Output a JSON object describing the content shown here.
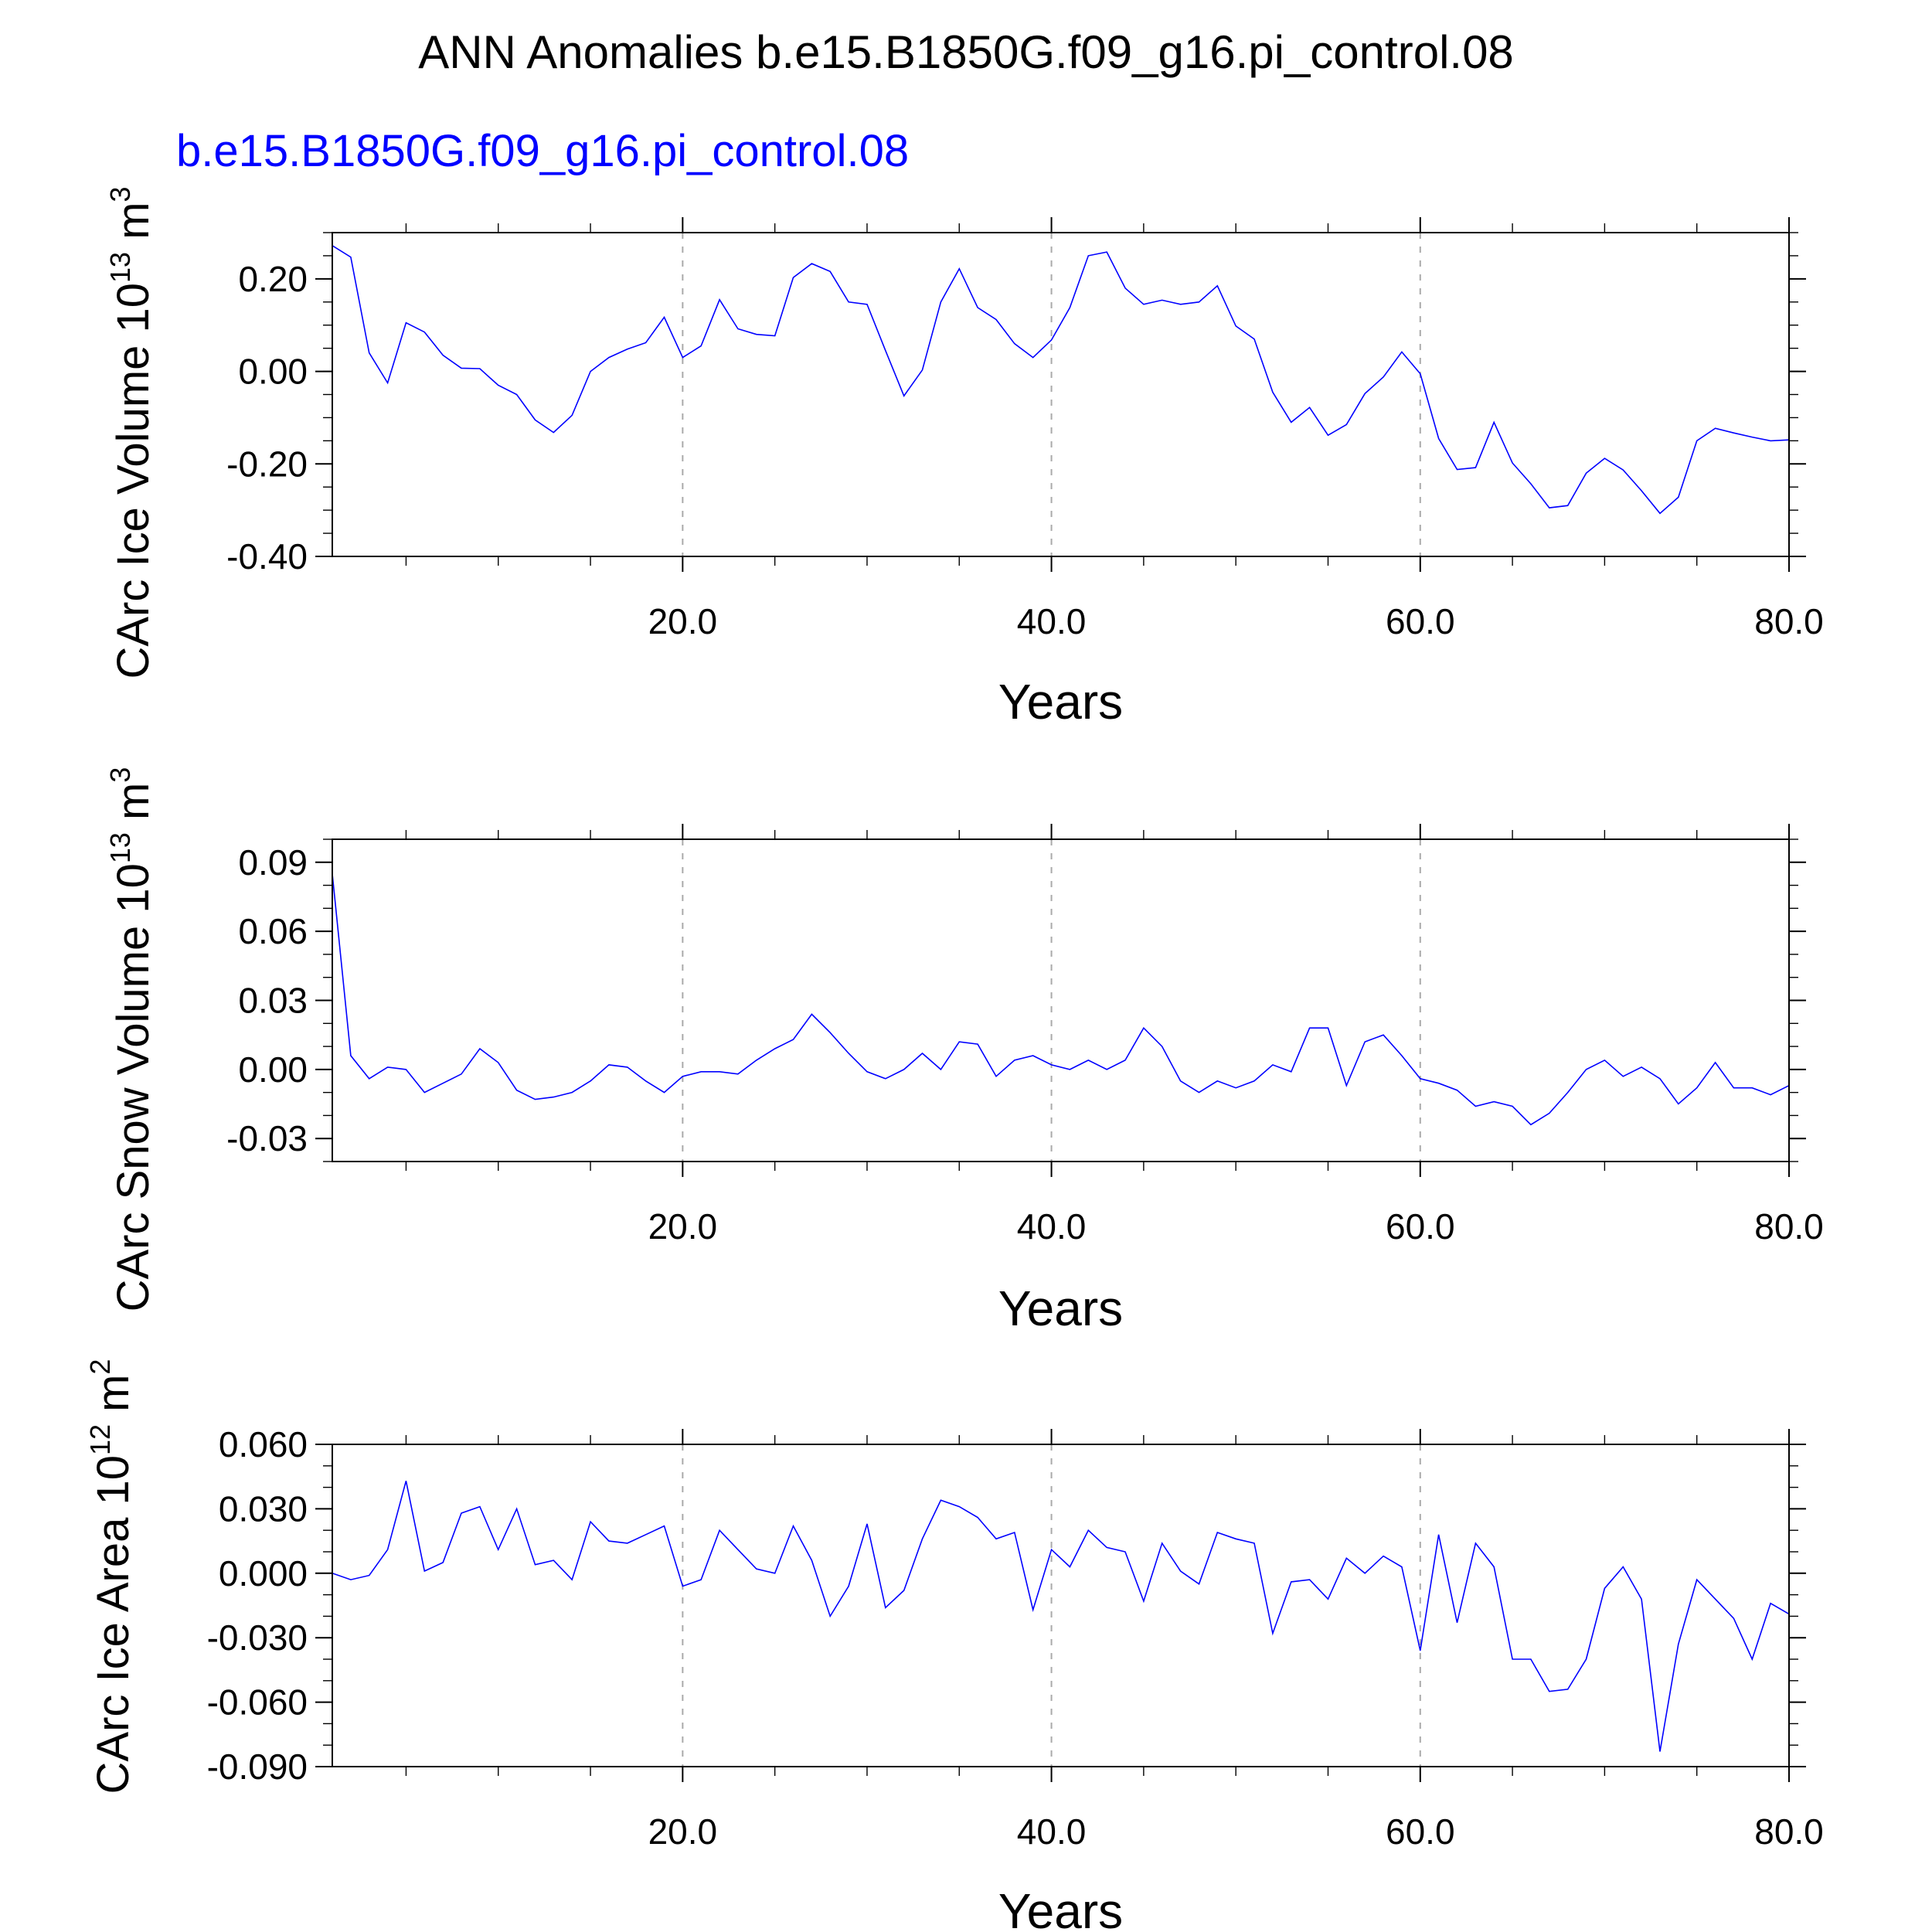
{
  "title": "ANN Anomalies b.e15.B1850G.f09_g16.pi_control.08",
  "subtitle": "b.e15.B1850G.f09_g16.pi_control.08",
  "series_color": "#0000ff",
  "chart_data": [
    {
      "type": "line",
      "ylabel": "CArc Ice Volume 10",
      "ylabel_sup": "13",
      "ylabel_unit": "m",
      "ylabel_unit_sup": "3",
      "xlabel": "Years",
      "xlim": [
        1,
        80
      ],
      "ylim": [
        -0.4,
        0.3
      ],
      "xticks": [
        "20.0",
        "40.0",
        "60.0",
        "80.0"
      ],
      "yticks": [
        "0.20",
        "0.00",
        "-0.20",
        "-0.40"
      ],
      "x": [
        1,
        2,
        3,
        4,
        5,
        6,
        7,
        8,
        9,
        10,
        11,
        12,
        13,
        14,
        15,
        16,
        17,
        18,
        19,
        20,
        21,
        22,
        23,
        24,
        25,
        26,
        27,
        28,
        29,
        30,
        31,
        32,
        33,
        34,
        35,
        36,
        37,
        38,
        39,
        40,
        41,
        42,
        43,
        44,
        45,
        46,
        47,
        48,
        49,
        50,
        51,
        52,
        53,
        54,
        55,
        56,
        57,
        58,
        59,
        60,
        61,
        62,
        63,
        64,
        65,
        66,
        67,
        68,
        69,
        70,
        71,
        72,
        73,
        74,
        75,
        76,
        77,
        78,
        79,
        80
      ],
      "values": [
        0.272,
        0.247,
        0.04,
        -0.025,
        0.105,
        0.085,
        0.035,
        0.007,
        0.006,
        -0.03,
        -0.05,
        -0.105,
        -0.132,
        -0.095,
        0.0,
        0.03,
        0.048,
        0.062,
        0.117,
        0.03,
        0.055,
        0.155,
        0.092,
        0.08,
        0.077,
        0.203,
        0.233,
        0.216,
        0.15,
        0.145,
        0.045,
        -0.053,
        0.003,
        0.15,
        0.222,
        0.138,
        0.112,
        0.06,
        0.03,
        0.068,
        0.138,
        0.25,
        0.258,
        0.18,
        0.145,
        0.154,
        0.145,
        0.15,
        0.185,
        0.098,
        0.07,
        -0.045,
        -0.11,
        -0.078,
        -0.138,
        -0.115,
        -0.048,
        -0.012,
        0.042,
        -0.005,
        -0.145,
        -0.212,
        -0.208,
        -0.11,
        -0.198,
        -0.243,
        -0.295,
        -0.29,
        -0.22,
        -0.188,
        -0.213,
        -0.258,
        -0.307,
        -0.272,
        -0.15,
        -0.123,
        -0.133,
        -0.142,
        -0.15,
        -0.148
      ]
    },
    {
      "type": "line",
      "ylabel": "CArc Snow Volume 10",
      "ylabel_sup": "13",
      "ylabel_unit": "m",
      "ylabel_unit_sup": "3",
      "xlabel": "Years",
      "xlim": [
        1,
        80
      ],
      "ylim": [
        -0.04,
        0.1
      ],
      "xticks": [
        "20.0",
        "40.0",
        "60.0",
        "80.0"
      ],
      "yticks": [
        "0.09",
        "0.06",
        "0.03",
        "0.00",
        "-0.03"
      ],
      "x": [
        1,
        2,
        3,
        4,
        5,
        6,
        7,
        8,
        9,
        10,
        11,
        12,
        13,
        14,
        15,
        16,
        17,
        18,
        19,
        20,
        21,
        22,
        23,
        24,
        25,
        26,
        27,
        28,
        29,
        30,
        31,
        32,
        33,
        34,
        35,
        36,
        37,
        38,
        39,
        40,
        41,
        42,
        43,
        44,
        45,
        46,
        47,
        48,
        49,
        50,
        51,
        52,
        53,
        54,
        55,
        56,
        57,
        58,
        59,
        60,
        61,
        62,
        63,
        64,
        65,
        66,
        67,
        68,
        69,
        70,
        71,
        72,
        73,
        74,
        75,
        76,
        77,
        78,
        79,
        80
      ],
      "values": [
        0.085,
        0.006,
        -0.004,
        0.001,
        0.0,
        -0.01,
        -0.006,
        -0.002,
        0.009,
        0.003,
        -0.009,
        -0.013,
        -0.012,
        -0.01,
        -0.005,
        0.002,
        0.001,
        -0.005,
        -0.01,
        -0.003,
        -0.001,
        -0.001,
        -0.002,
        0.004,
        0.009,
        0.013,
        0.024,
        0.016,
        0.007,
        -0.001,
        -0.004,
        0.0,
        0.007,
        0.0,
        0.012,
        0.011,
        -0.003,
        0.004,
        0.006,
        0.002,
        0.0,
        0.004,
        0.0,
        0.004,
        0.018,
        0.01,
        -0.005,
        -0.01,
        -0.005,
        -0.008,
        -0.005,
        0.002,
        -0.001,
        0.018,
        0.018,
        -0.007,
        0.012,
        0.015,
        0.006,
        -0.004,
        -0.006,
        -0.009,
        -0.016,
        -0.014,
        -0.016,
        -0.024,
        -0.019,
        -0.01,
        0.0,
        0.004,
        -0.003,
        0.001,
        -0.004,
        -0.015,
        -0.008,
        0.003,
        -0.008,
        -0.008,
        -0.011,
        -0.007
      ]
    },
    {
      "type": "line",
      "ylabel": "CArc Ice Area 10",
      "ylabel_sup": "12",
      "ylabel_unit": "m",
      "ylabel_unit_sup": "2",
      "xlabel": "Years",
      "xlim": [
        1,
        80
      ],
      "ylim": [
        -0.09,
        0.06
      ],
      "xticks": [
        "20.0",
        "40.0",
        "60.0",
        "80.0"
      ],
      "yticks": [
        "0.060",
        "0.030",
        "0.000",
        "-0.030",
        "-0.060",
        "-0.090"
      ],
      "x": [
        1,
        2,
        3,
        4,
        5,
        6,
        7,
        8,
        9,
        10,
        11,
        12,
        13,
        14,
        15,
        16,
        17,
        18,
        19,
        20,
        21,
        22,
        23,
        24,
        25,
        26,
        27,
        28,
        29,
        30,
        31,
        32,
        33,
        34,
        35,
        36,
        37,
        38,
        39,
        40,
        41,
        42,
        43,
        44,
        45,
        46,
        47,
        48,
        49,
        50,
        51,
        52,
        53,
        54,
        55,
        56,
        57,
        58,
        59,
        60,
        61,
        62,
        63,
        64,
        65,
        66,
        67,
        68,
        69,
        70,
        71,
        72,
        73,
        74,
        75,
        76,
        77,
        78,
        79,
        80
      ],
      "values": [
        0.0,
        -0.003,
        -0.001,
        0.011,
        0.043,
        0.001,
        0.005,
        0.028,
        0.031,
        0.011,
        0.03,
        0.004,
        0.006,
        -0.003,
        0.024,
        0.015,
        0.014,
        0.018,
        0.022,
        -0.006,
        -0.003,
        0.02,
        0.011,
        0.002,
        0.0,
        0.022,
        0.006,
        -0.02,
        -0.006,
        0.023,
        -0.016,
        -0.008,
        0.016,
        0.034,
        0.031,
        0.026,
        0.016,
        0.019,
        -0.017,
        0.011,
        0.003,
        0.02,
        0.012,
        0.01,
        -0.013,
        0.014,
        0.001,
        -0.005,
        0.019,
        0.016,
        0.014,
        -0.028,
        -0.004,
        -0.003,
        -0.012,
        0.007,
        0.0,
        0.008,
        0.003,
        -0.036,
        0.018,
        -0.023,
        0.014,
        0.003,
        -0.04,
        -0.04,
        -0.055,
        -0.054,
        -0.04,
        -0.007,
        0.003,
        -0.012,
        -0.083,
        -0.033,
        -0.003,
        -0.012,
        -0.021,
        -0.04,
        -0.014,
        -0.019
      ]
    }
  ]
}
